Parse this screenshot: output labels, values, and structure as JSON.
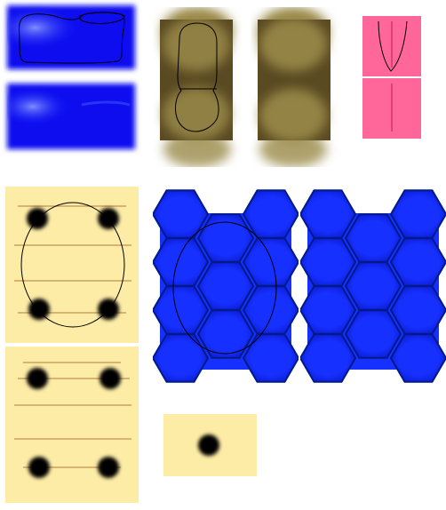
{
  "sheet": {
    "background": "#ffffff",
    "sprites": [
      {
        "name": "water-tile-top",
        "kind": "water",
        "outline": "blob"
      },
      {
        "name": "water-tile-bottom",
        "kind": "water",
        "outline": "none"
      },
      {
        "name": "mud-tile-outlined",
        "kind": "mud",
        "outline": "capsule"
      },
      {
        "name": "mud-tile-plain",
        "kind": "mud",
        "outline": "none"
      },
      {
        "name": "pink-tile",
        "kind": "pink",
        "outline": "drop"
      },
      {
        "name": "sand-tile-top",
        "kind": "sand",
        "outline": "oval",
        "dots": 4
      },
      {
        "name": "sand-tile-bottom",
        "kind": "sand",
        "outline": "none",
        "dots": 4
      },
      {
        "name": "hex-grid-outlined",
        "kind": "hex",
        "outline": "oval"
      },
      {
        "name": "hex-grid-plain",
        "kind": "hex",
        "outline": "none"
      },
      {
        "name": "sand-tile-small",
        "kind": "sand",
        "outline": "none",
        "dots": 1
      }
    ]
  },
  "colors": {
    "water": "#0a10f0",
    "water_highlight": "#6a7cff",
    "mud_light": "#9a8a48",
    "mud_dark": "#4a3a1e",
    "pink": "#ff6699",
    "pink_line": "#e0407a",
    "sand": "#fdeca6",
    "sand_line": "#c89050",
    "hex_fill": "#1630ff",
    "hex_stroke": "#001a88",
    "dot": "#000000",
    "outline": "#000000"
  }
}
